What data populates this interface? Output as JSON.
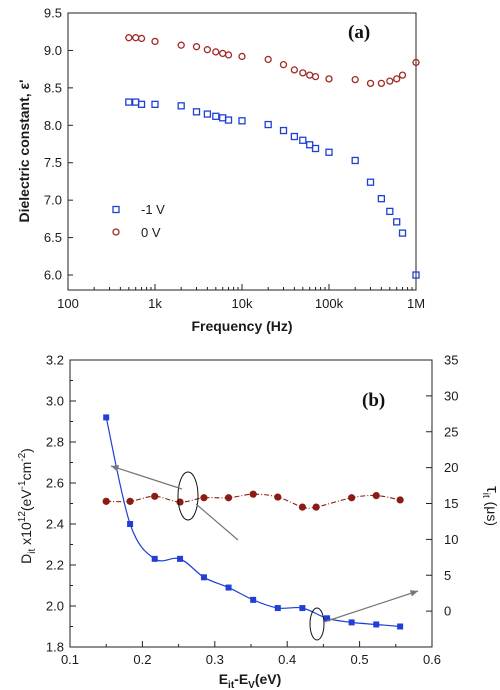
{
  "chart_data": [
    {
      "panel_label": "(a)",
      "type": "scatter",
      "xscale": "log",
      "xlabel": "Frequency (Hz)",
      "ylabel": "Dielectric constant, ε'",
      "xlim": [
        100,
        1000000
      ],
      "ylim": [
        5.8,
        9.5
      ],
      "x_ticks": [
        100,
        1000,
        10000,
        100000,
        1000000
      ],
      "x_tick_labels": [
        "100",
        "1k",
        "10k",
        "100k",
        "1M"
      ],
      "y_ticks": [
        6.0,
        6.5,
        7.0,
        7.5,
        8.0,
        8.5,
        9.0,
        9.5
      ],
      "y_tick_labels": [
        "6.0",
        "6.5",
        "7.0",
        "7.5",
        "8.0",
        "8.5",
        "9.0",
        "9.5"
      ],
      "legend_position": "lower-left",
      "series": [
        {
          "name": "-1 V",
          "marker": "open-square",
          "color": "#1f3fd6",
          "x": [
            500,
            600,
            700,
            1000,
            2000,
            3000,
            4000,
            5000,
            6000,
            7000,
            10000,
            20000,
            30000,
            40000,
            50000,
            60000,
            70000,
            100000,
            200000,
            300000,
            400000,
            500000,
            600000,
            700000,
            1000000
          ],
          "y": [
            8.31,
            8.31,
            8.28,
            8.28,
            8.26,
            8.18,
            8.15,
            8.12,
            8.1,
            8.07,
            8.06,
            8.01,
            7.93,
            7.85,
            7.8,
            7.74,
            7.69,
            7.64,
            7.53,
            7.24,
            7.02,
            6.85,
            6.71,
            6.56,
            6.0
          ]
        },
        {
          "name": "0 V",
          "marker": "open-circle",
          "color": "#a02a24",
          "x": [
            500,
            600,
            700,
            1000,
            2000,
            3000,
            4000,
            5000,
            6000,
            7000,
            10000,
            20000,
            30000,
            40000,
            50000,
            60000,
            70000,
            100000,
            200000,
            300000,
            400000,
            500000,
            600000,
            700000,
            1000000
          ],
          "y": [
            9.17,
            9.17,
            9.16,
            9.12,
            9.07,
            9.05,
            9.01,
            8.98,
            8.96,
            8.94,
            8.92,
            8.88,
            8.81,
            8.74,
            8.7,
            8.67,
            8.65,
            8.62,
            8.61,
            8.56,
            8.56,
            8.59,
            8.62,
            8.67,
            8.84
          ]
        }
      ]
    },
    {
      "panel_label": "(b)",
      "type": "line",
      "xlabel": "E_it - E_V (eV)",
      "ylabel_left": "D_it x10^12 (eV^-1 cm^-2)",
      "ylabel_right": "τ_it (μs)",
      "xlim": [
        0.1,
        0.6
      ],
      "ylim_left": [
        1.8,
        3.2
      ],
      "ylim_right": [
        -5,
        35
      ],
      "x_ticks": [
        0.1,
        0.2,
        0.3,
        0.4,
        0.5,
        0.6
      ],
      "x_tick_labels": [
        "0.1",
        "0.2",
        "0.3",
        "0.4",
        "0.5",
        "0.6"
      ],
      "y_left_ticks": [
        1.8,
        2.0,
        2.2,
        2.4,
        2.6,
        2.8,
        3.0,
        3.2
      ],
      "y_left_tick_labels": [
        "1.8",
        "2.0",
        "2.2",
        "2.4",
        "2.6",
        "2.8",
        "3.0",
        "3.2"
      ],
      "y_right_ticks": [
        0,
        5,
        10,
        15,
        20,
        25,
        30,
        35
      ],
      "y_right_tick_labels": [
        "0",
        "5",
        "10",
        "15",
        "20",
        "25",
        "30",
        "35"
      ],
      "series": [
        {
          "axis": "left",
          "marker": "filled-square",
          "line": "solid",
          "color": "#1f3fd6",
          "x": [
            0.15,
            0.183,
            0.217,
            0.252,
            0.285,
            0.319,
            0.353,
            0.387,
            0.421,
            0.455,
            0.489,
            0.523,
            0.556
          ],
          "y": [
            2.92,
            2.4,
            2.23,
            2.23,
            2.14,
            2.09,
            2.03,
            1.99,
            1.99,
            1.94,
            1.92,
            1.91,
            1.9
          ]
        },
        {
          "axis": "right",
          "marker": "filled-circle",
          "line": "dash-dot",
          "color": "#8b1c14",
          "x": [
            0.15,
            0.183,
            0.217,
            0.252,
            0.285,
            0.319,
            0.353,
            0.387,
            0.421,
            0.44,
            0.489,
            0.523,
            0.556
          ],
          "y": [
            15.3,
            15.3,
            16.0,
            15.2,
            15.8,
            15.8,
            16.3,
            15.9,
            14.5,
            14.5,
            15.8,
            16.1,
            15.5
          ]
        }
      ]
    }
  ]
}
